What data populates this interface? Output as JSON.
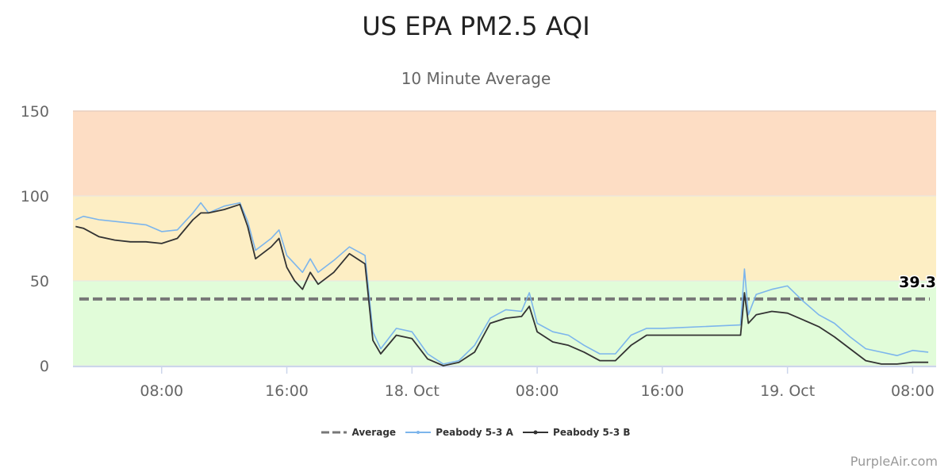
{
  "chart_data": {
    "type": "line",
    "title": "US EPA PM2.5 AQI",
    "subtitle": "10 Minute Average",
    "ylim": [
      0,
      150
    ],
    "yticks": [
      0,
      50,
      100,
      150
    ],
    "xlim": [
      "17 Oct 02:20",
      "19 Oct 09:30"
    ],
    "xticks": [
      {
        "t": "17 Oct 08:00",
        "label": "08:00"
      },
      {
        "t": "17 Oct 16:00",
        "label": "16:00"
      },
      {
        "t": "18 Oct 00:00",
        "label": "18. Oct"
      },
      {
        "t": "18 Oct 08:00",
        "label": "08:00"
      },
      {
        "t": "18 Oct 16:00",
        "label": "16:00"
      },
      {
        "t": "19 Oct 00:00",
        "label": "19. Oct"
      },
      {
        "t": "19 Oct 08:00",
        "label": "08:00"
      }
    ],
    "bands": [
      {
        "from": 0,
        "to": 50,
        "color": "#e1fcd9"
      },
      {
        "from": 50,
        "to": 100,
        "color": "#fdeec4"
      },
      {
        "from": 100,
        "to": 150,
        "color": "#fdddc4"
      }
    ],
    "average": {
      "name": "Average",
      "value": 39.3,
      "label": "39.3",
      "color": "#777777"
    },
    "x": [
      "17 Oct 02:30",
      "17 Oct 03:00",
      "17 Oct 04:00",
      "17 Oct 05:00",
      "17 Oct 06:00",
      "17 Oct 07:00",
      "17 Oct 08:00",
      "17 Oct 09:00",
      "17 Oct 10:00",
      "17 Oct 10:30",
      "17 Oct 11:00",
      "17 Oct 12:00",
      "17 Oct 13:00",
      "17 Oct 13:30",
      "17 Oct 14:00",
      "17 Oct 15:00",
      "17 Oct 15:30",
      "17 Oct 16:00",
      "17 Oct 16:30",
      "17 Oct 17:00",
      "17 Oct 17:30",
      "17 Oct 18:00",
      "17 Oct 19:00",
      "17 Oct 20:00",
      "17 Oct 21:00",
      "17 Oct 21:30",
      "17 Oct 22:00",
      "17 Oct 23:00",
      "18 Oct 00:00",
      "18 Oct 01:00",
      "18 Oct 02:00",
      "18 Oct 03:00",
      "18 Oct 04:00",
      "18 Oct 05:00",
      "18 Oct 06:00",
      "18 Oct 07:00",
      "18 Oct 07:30",
      "18 Oct 08:00",
      "18 Oct 09:00",
      "18 Oct 10:00",
      "18 Oct 11:00",
      "18 Oct 12:00",
      "18 Oct 13:00",
      "18 Oct 14:00",
      "18 Oct 15:00",
      "18 Oct 16:00",
      "18 Oct 21:00",
      "18 Oct 21:15",
      "18 Oct 21:30",
      "18 Oct 22:00",
      "18 Oct 23:00",
      "19 Oct 00:00",
      "19 Oct 01:00",
      "19 Oct 02:00",
      "19 Oct 03:00",
      "19 Oct 04:00",
      "19 Oct 05:00",
      "19 Oct 06:00",
      "19 Oct 07:00",
      "19 Oct 08:00",
      "19 Oct 09:00"
    ],
    "series": [
      {
        "name": "Peabody 5-3 A",
        "color": "#7cb5ec",
        "values": [
          86,
          88,
          86,
          85,
          84,
          83,
          79,
          80,
          90,
          96,
          90,
          94,
          96,
          85,
          68,
          75,
          80,
          65,
          60,
          55,
          63,
          55,
          62,
          70,
          65,
          20,
          10,
          22,
          20,
          7,
          1,
          3,
          12,
          28,
          33,
          32,
          43,
          25,
          20,
          18,
          12,
          7,
          7,
          18,
          22,
          22,
          24,
          57,
          30,
          42,
          45,
          47,
          38,
          30,
          25,
          17,
          10,
          8,
          6,
          9,
          8
        ]
      },
      {
        "name": "Peabody 5-3 B",
        "color": "#333333",
        "values": [
          82,
          81,
          76,
          74,
          73,
          73,
          72,
          75,
          86,
          90,
          90,
          92,
          95,
          82,
          63,
          70,
          75,
          58,
          50,
          45,
          55,
          48,
          55,
          66,
          60,
          15,
          7,
          18,
          16,
          4,
          0,
          2,
          8,
          25,
          28,
          29,
          35,
          20,
          14,
          12,
          8,
          3,
          3,
          12,
          18,
          18,
          18,
          43,
          25,
          30,
          32,
          31,
          27,
          23,
          17,
          10,
          3,
          1,
          1,
          2,
          2
        ]
      }
    ]
  },
  "credit": "PurpleAir.com"
}
